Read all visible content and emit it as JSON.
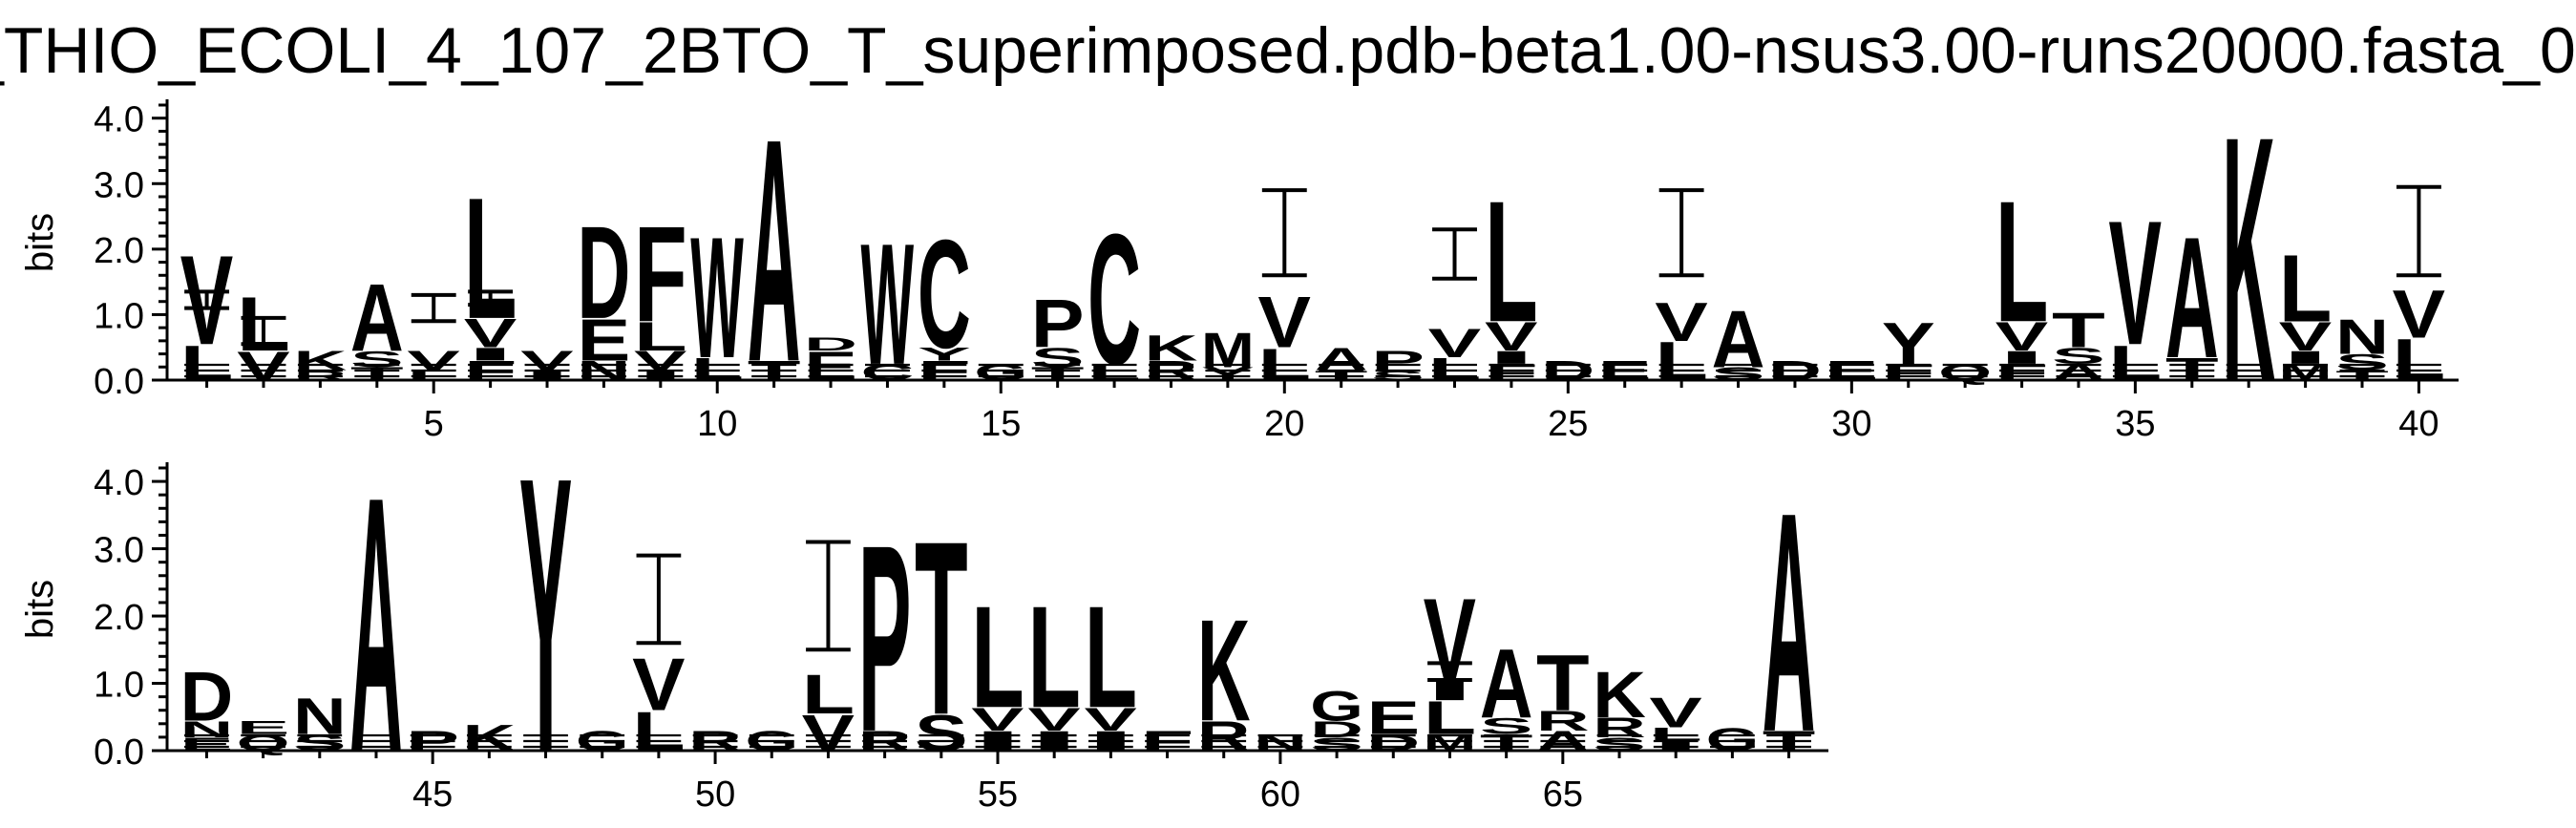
{
  "title": "_THIO_ECOLI_4_107_2BTO_T_superimposed.pdb-beta1.00-nsus3.00-runs20000.fasta_0",
  "chart_data": [
    {
      "type": "sequence-logo",
      "ylabel": "bits",
      "ylim": [
        0,
        4.2
      ],
      "yticks": [
        "0.0",
        "1.0",
        "2.0",
        "3.0",
        "4.0"
      ],
      "xlim": [
        1,
        40
      ],
      "xticks": [
        "5",
        "10",
        "15",
        "20",
        "25",
        "30",
        "35",
        "40"
      ],
      "xtick_values": [
        5,
        10,
        15,
        20,
        25,
        30,
        35,
        40
      ],
      "positions": [
        {
          "pos": 1,
          "letters": [
            [
              "L",
              0.55
            ],
            [
              "V",
              1.4
            ]
          ],
          "error": [
            1.1,
            1.35
          ]
        },
        {
          "pos": 2,
          "letters": [
            [
              "V",
              0.45
            ],
            [
              "L",
              0.85
            ]
          ],
          "error": [
            0.55,
            0.95
          ]
        },
        {
          "pos": 3,
          "letters": [
            [
              "R",
              0.15
            ],
            [
              "K",
              0.3
            ]
          ]
        },
        {
          "pos": 4,
          "letters": [
            [
              "T",
              0.2
            ],
            [
              "S",
              0.25
            ],
            [
              "A",
              1.05
            ]
          ]
        },
        {
          "pos": 5,
          "letters": [
            [
              "L",
              0.15
            ],
            [
              "V",
              0.3
            ]
          ],
          "error": [
            0.9,
            1.3
          ]
        },
        {
          "pos": 6,
          "letters": [
            [
              "F",
              0.3
            ],
            [
              "I",
              0.2
            ],
            [
              "V",
              0.45
            ],
            [
              "L",
              1.9
            ]
          ],
          "error": [
            1.15,
            1.35
          ]
        },
        {
          "pos": 7,
          "letters": [
            [
              "I",
              0.15
            ],
            [
              "V",
              0.3
            ]
          ]
        },
        {
          "pos": 8,
          "letters": [
            [
              "N",
              0.3
            ],
            [
              "E",
              0.65
            ],
            [
              "D",
              1.45
            ]
          ]
        },
        {
          "pos": 9,
          "letters": [
            [
              "I",
              0.15
            ],
            [
              "V",
              0.3
            ],
            [
              "L",
              0.45
            ],
            [
              "F",
              1.5
            ]
          ]
        },
        {
          "pos": 10,
          "letters": [
            [
              "L",
              0.35
            ],
            [
              "W",
              1.9
            ]
          ]
        },
        {
          "pos": 11,
          "letters": [
            [
              "T",
              0.3
            ],
            [
              "A",
              3.5
            ]
          ]
        },
        {
          "pos": 12,
          "letters": [
            [
              "E",
              0.45
            ],
            [
              "D",
              0.2
            ]
          ]
        },
        {
          "pos": 13,
          "letters": [
            [
              "C",
              0.25
            ],
            [
              "W",
              1.9
            ]
          ]
        },
        {
          "pos": 14,
          "letters": [
            [
              "F",
              0.3
            ],
            [
              "Y",
              0.2
            ],
            [
              "C",
              1.7
            ]
          ]
        },
        {
          "pos": 15,
          "letters": [
            [
              "G",
              0.25
            ]
          ]
        },
        {
          "pos": 16,
          "letters": [
            [
              "T",
              0.2
            ],
            [
              "S",
              0.3
            ],
            [
              "P",
              0.75
            ]
          ]
        },
        {
          "pos": 17,
          "letters": [
            [
              "L",
              0.25
            ],
            [
              "C",
              2.05
            ]
          ]
        },
        {
          "pos": 18,
          "letters": [
            [
              "R",
              0.3
            ],
            [
              "K",
              0.4
            ]
          ]
        },
        {
          "pos": 19,
          "letters": [
            [
              "Y",
              0.2
            ],
            [
              "M",
              0.55
            ]
          ]
        },
        {
          "pos": 20,
          "letters": [
            [
              "L",
              0.5
            ],
            [
              "V",
              0.8
            ]
          ],
          "error": [
            1.6,
            2.9
          ]
        },
        {
          "pos": 21,
          "letters": [
            [
              "T",
              0.15
            ],
            [
              "A",
              0.35
            ]
          ]
        },
        {
          "pos": 22,
          "letters": [
            [
              "S",
              0.15
            ],
            [
              "P",
              0.3
            ]
          ]
        },
        {
          "pos": 23,
          "letters": [
            [
              "L",
              0.35
            ],
            [
              "V",
              0.45
            ]
          ],
          "error": [
            1.55,
            2.3
          ]
        },
        {
          "pos": 24,
          "letters": [
            [
              "F",
              0.25
            ],
            [
              "I",
              0.2
            ],
            [
              "V",
              0.45
            ],
            [
              "L",
              1.9
            ]
          ]
        },
        {
          "pos": 25,
          "letters": [
            [
              "D",
              0.3
            ]
          ]
        },
        {
          "pos": 26,
          "letters": [
            [
              "E",
              0.3
            ]
          ]
        },
        {
          "pos": 27,
          "letters": [
            [
              "L",
              0.6
            ],
            [
              "V",
              0.6
            ]
          ],
          "error": [
            1.6,
            2.9
          ]
        },
        {
          "pos": 28,
          "letters": [
            [
              "S",
              0.2
            ],
            [
              "A",
              0.9
            ]
          ]
        },
        {
          "pos": 29,
          "letters": [
            [
              "D",
              0.3
            ]
          ]
        },
        {
          "pos": 30,
          "letters": [
            [
              "E",
              0.3
            ]
          ]
        },
        {
          "pos": 31,
          "letters": [
            [
              "F",
              0.25
            ],
            [
              "Y",
              0.65
            ]
          ]
        },
        {
          "pos": 32,
          "letters": [
            [
              "Q",
              0.25
            ]
          ]
        },
        {
          "pos": 33,
          "letters": [
            [
              "F",
              0.25
            ],
            [
              "I",
              0.2
            ],
            [
              "V",
              0.45
            ],
            [
              "L",
              1.9
            ]
          ]
        },
        {
          "pos": 34,
          "letters": [
            [
              "A",
              0.25
            ],
            [
              "S",
              0.25
            ],
            [
              "T",
              0.55
            ]
          ]
        },
        {
          "pos": 35,
          "letters": [
            [
              "L",
              0.55
            ],
            [
              "V",
              1.95
            ]
          ]
        },
        {
          "pos": 36,
          "letters": [
            [
              "T",
              0.35
            ],
            [
              "A",
              1.9
            ]
          ]
        },
        {
          "pos": 37,
          "letters": [
            [
              "K",
              3.85
            ]
          ]
        },
        {
          "pos": 38,
          "letters": [
            [
              "M",
              0.25
            ],
            [
              "I",
              0.2
            ],
            [
              "V",
              0.45
            ],
            [
              "L",
              1.05
            ]
          ]
        },
        {
          "pos": 39,
          "letters": [
            [
              "T",
              0.15
            ],
            [
              "S",
              0.25
            ],
            [
              "N",
              0.55
            ]
          ]
        },
        {
          "pos": 40,
          "letters": [
            [
              "L",
              0.65
            ],
            [
              "V",
              0.75
            ]
          ],
          "error": [
            1.6,
            2.95
          ]
        }
      ]
    },
    {
      "type": "sequence-logo",
      "ylabel": "bits",
      "ylim": [
        0,
        4.2
      ],
      "yticks": [
        "0.0",
        "1.0",
        "2.0",
        "3.0",
        "4.0"
      ],
      "xlim": [
        41,
        69
      ],
      "xticks": [
        "45",
        "50",
        "55",
        "60",
        "65"
      ],
      "xtick_values": [
        45,
        50,
        55,
        60,
        65
      ],
      "positions": [
        {
          "pos": 41,
          "letters": [
            [
              "E",
              0.2
            ],
            [
              "N",
              0.25
            ],
            [
              "D",
              0.75
            ]
          ]
        },
        {
          "pos": 42,
          "letters": [
            [
              "Q",
              0.25
            ],
            [
              "E",
              0.2
            ]
          ]
        },
        {
          "pos": 43,
          "letters": [
            [
              "S",
              0.25
            ],
            [
              "N",
              0.55
            ]
          ]
        },
        {
          "pos": 44,
          "letters": [
            [
              "A",
              3.9
            ]
          ]
        },
        {
          "pos": 45,
          "letters": [
            [
              "P",
              0.3
            ]
          ]
        },
        {
          "pos": 46,
          "letters": [
            [
              "K",
              0.4
            ]
          ]
        },
        {
          "pos": 47,
          "letters": [
            [
              "Y",
              4.2
            ]
          ]
        },
        {
          "pos": 48,
          "letters": [
            [
              "G",
              0.3
            ]
          ]
        },
        {
          "pos": 49,
          "letters": [
            [
              "L",
              0.6
            ],
            [
              "V",
              0.8
            ]
          ],
          "error": [
            1.6,
            2.9
          ]
        },
        {
          "pos": 50,
          "letters": [
            [
              "R",
              0.3
            ]
          ]
        },
        {
          "pos": 51,
          "letters": [
            [
              "G",
              0.3
            ]
          ]
        },
        {
          "pos": 52,
          "letters": [
            [
              "V",
              0.55
            ],
            [
              "L",
              0.6
            ]
          ],
          "error": [
            1.5,
            3.1
          ]
        },
        {
          "pos": 53,
          "letters": [
            [
              "R",
              0.3
            ],
            [
              "P",
              2.85
            ]
          ]
        },
        {
          "pos": 54,
          "letters": [
            [
              "S",
              0.55
            ],
            [
              "T",
              2.65
            ]
          ]
        },
        {
          "pos": 55,
          "letters": [
            [
              "I",
              0.3
            ],
            [
              "V",
              0.35
            ],
            [
              "L",
              1.55
            ]
          ]
        },
        {
          "pos": 56,
          "letters": [
            [
              "I",
              0.3
            ],
            [
              "V",
              0.35
            ],
            [
              "L",
              1.55
            ]
          ]
        },
        {
          "pos": 57,
          "letters": [
            [
              "I",
              0.3
            ],
            [
              "V",
              0.35
            ],
            [
              "L",
              1.55
            ]
          ]
        },
        {
          "pos": 58,
          "letters": [
            [
              "F",
              0.3
            ]
          ]
        },
        {
          "pos": 59,
          "letters": [
            [
              "R",
              0.45
            ],
            [
              "K",
              1.55
            ]
          ]
        },
        {
          "pos": 60,
          "letters": [
            [
              "N",
              0.25
            ]
          ]
        },
        {
          "pos": 61,
          "letters": [
            [
              "S",
              0.2
            ],
            [
              "D",
              0.25
            ],
            [
              "G",
              0.45
            ]
          ]
        },
        {
          "pos": 62,
          "letters": [
            [
              "D",
              0.25
            ],
            [
              "E",
              0.5
            ]
          ]
        },
        {
          "pos": 63,
          "letters": [
            [
              "M",
              0.25
            ],
            [
              "L",
              0.5
            ],
            [
              "I",
              0.3
            ],
            [
              "V",
              1.25
            ]
          ],
          "error": [
            1.05,
            1.3
          ]
        },
        {
          "pos": 64,
          "letters": [
            [
              "T",
              0.25
            ],
            [
              "S",
              0.25
            ],
            [
              "A",
              1.05
            ]
          ]
        },
        {
          "pos": 65,
          "letters": [
            [
              "A",
              0.3
            ],
            [
              "R",
              0.3
            ],
            [
              "T",
              0.85
            ]
          ]
        },
        {
          "pos": 66,
          "letters": [
            [
              "S",
              0.2
            ],
            [
              "R",
              0.3
            ],
            [
              "K",
              0.7
            ]
          ]
        },
        {
          "pos": 67,
          "letters": [
            [
              "I",
              0.15
            ],
            [
              "L",
              0.2
            ],
            [
              "V",
              0.45
            ]
          ]
        },
        {
          "pos": 68,
          "letters": [
            [
              "G",
              0.35
            ]
          ]
        },
        {
          "pos": 69,
          "letters": [
            [
              "T",
              0.3
            ],
            [
              "A",
              3.35
            ]
          ]
        }
      ]
    }
  ]
}
